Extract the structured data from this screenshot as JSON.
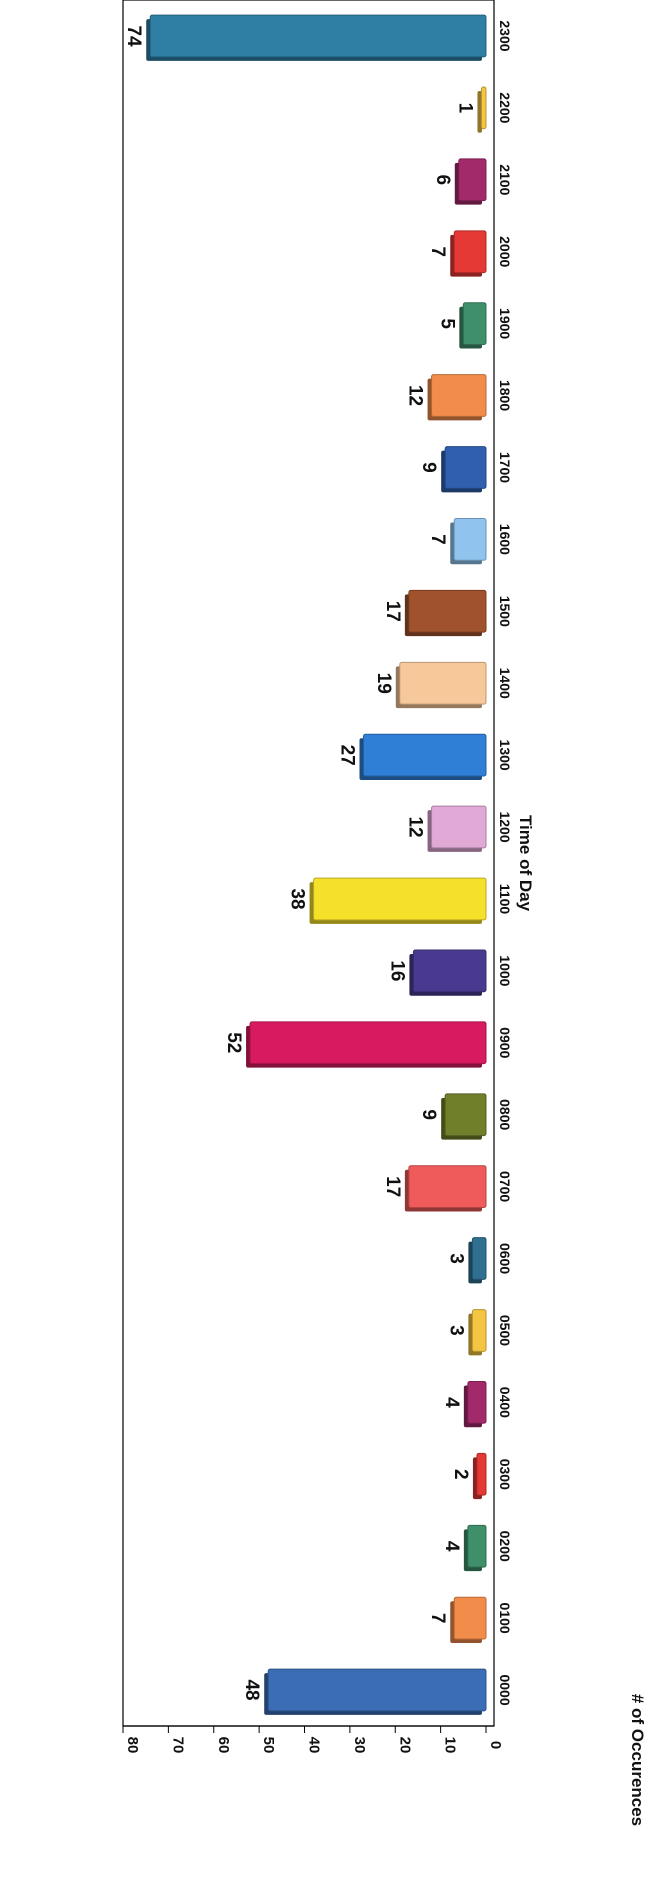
{
  "chart_data": {
    "type": "bar",
    "orientation": "vertical (figure rotated 90 degrees clockwise)",
    "xlabel": "Time of Day",
    "ylabel": "# of Occurences",
    "categories": [
      "0000",
      "0100",
      "0200",
      "0300",
      "0400",
      "0500",
      "0600",
      "0700",
      "0800",
      "0900",
      "1000",
      "1100",
      "1200",
      "1300",
      "1400",
      "1500",
      "1600",
      "1700",
      "1800",
      "1900",
      "2000",
      "2100",
      "2200",
      "2300"
    ],
    "values": [
      48,
      7,
      4,
      2,
      4,
      3,
      3,
      17,
      9,
      52,
      16,
      38,
      12,
      27,
      19,
      17,
      7,
      9,
      12,
      5,
      7,
      6,
      1,
      74
    ],
    "ylim": [
      0,
      80
    ],
    "yticks": [
      "0",
      "10",
      "20",
      "30",
      "40",
      "50",
      "60",
      "70",
      "80"
    ],
    "data_labels": true,
    "grid": false,
    "legend": "none",
    "colors": [
      "#3a6db5",
      "#f28c4a",
      "#3f8f6a",
      "#e53935",
      "#a32a6a",
      "#f4c542",
      "#2f6f8f",
      "#ef5a5a",
      "#6f7f2a",
      "#d81b60",
      "#4a3a8f",
      "#f6e12a",
      "#e0a9d6",
      "#2f7fd6",
      "#f6c89a",
      "#a0522d",
      "#90c4ef",
      "#2f5fae",
      "#f28c4a",
      "#3f8f6a",
      "#e53935",
      "#a32a6a",
      "#f4c542",
      "#2f7fa5"
    ]
  }
}
